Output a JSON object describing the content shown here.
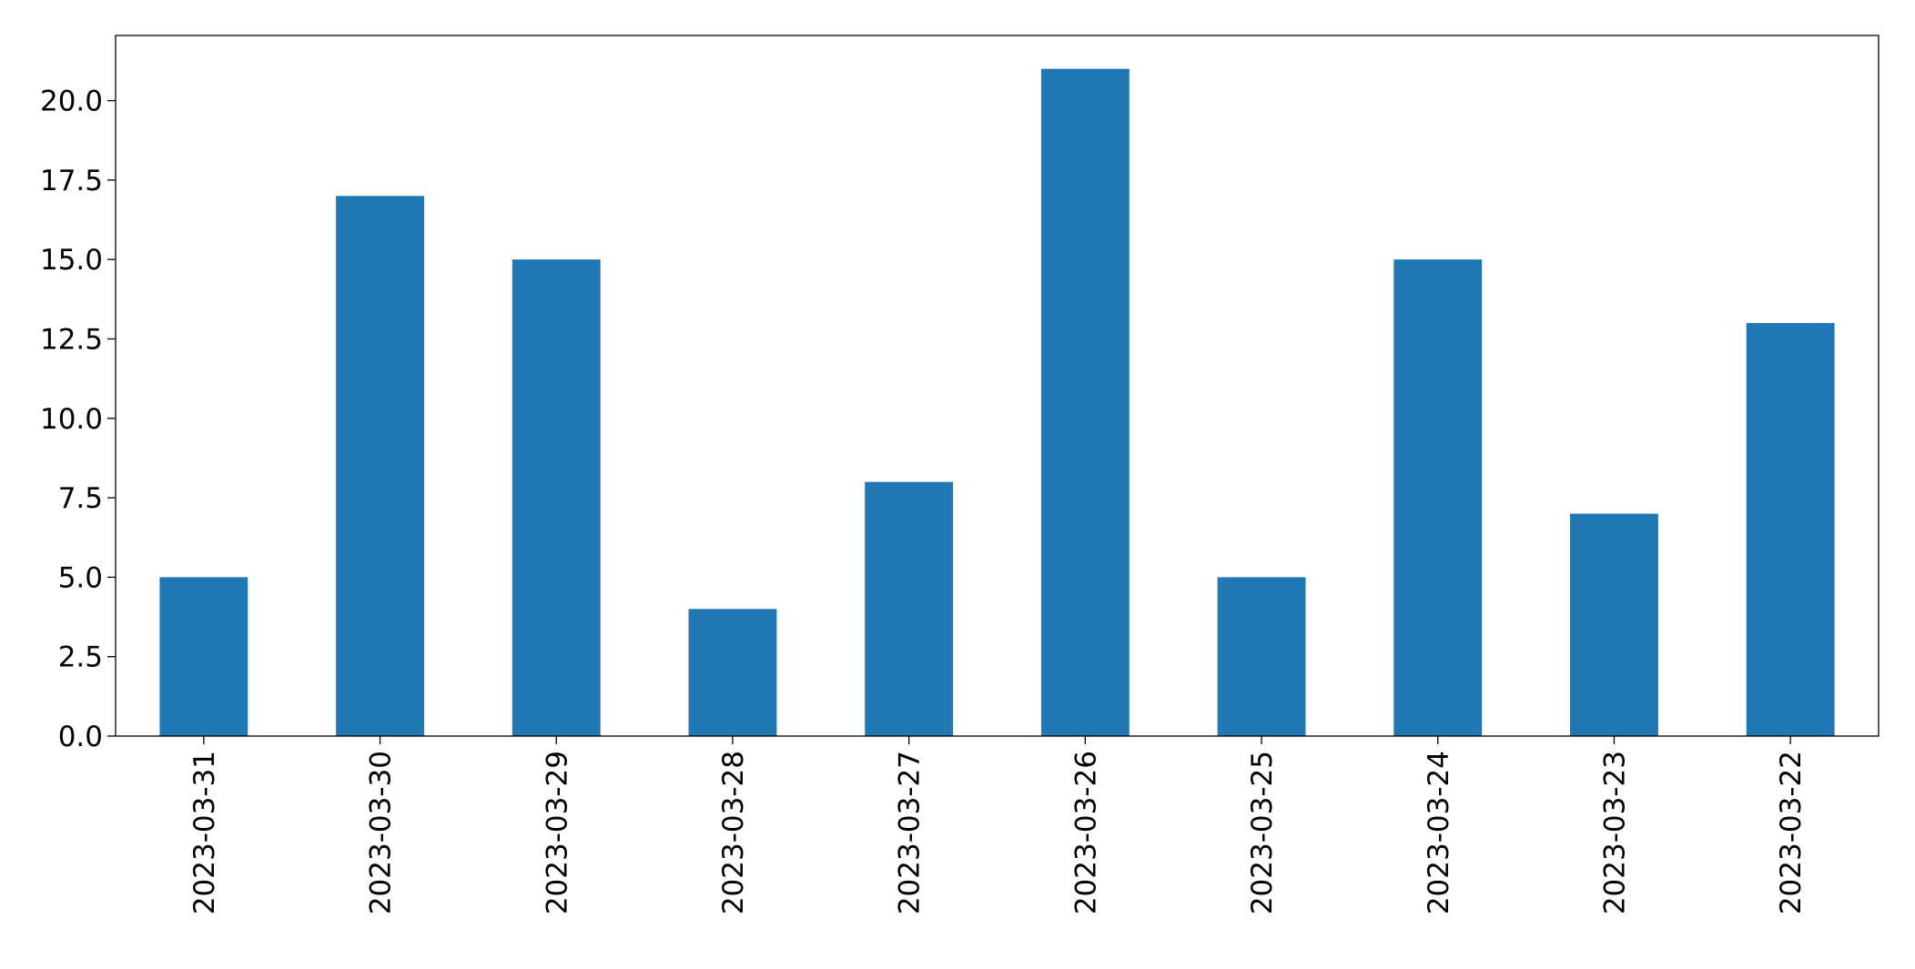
{
  "chart_data": {
    "type": "bar",
    "categories": [
      "2023-03-31",
      "2023-03-30",
      "2023-03-29",
      "2023-03-28",
      "2023-03-27",
      "2023-03-26",
      "2023-03-25",
      "2023-03-24",
      "2023-03-23",
      "2023-03-22"
    ],
    "values": [
      5,
      17,
      15,
      4,
      8,
      21,
      5,
      15,
      7,
      13
    ],
    "color": "#1f77b4",
    "ylim": [
      0,
      22.05
    ],
    "yticks": [
      {
        "value": 0,
        "label": "0.0"
      },
      2.5,
      {
        "value": 5,
        "label": "5.0"
      },
      7.5,
      {
        "value": 10,
        "label": "10.0"
      },
      12.5,
      {
        "value": 15,
        "label": "15.0"
      },
      17.5,
      {
        "value": 20,
        "label": "20.0"
      }
    ],
    "grid": false
  }
}
